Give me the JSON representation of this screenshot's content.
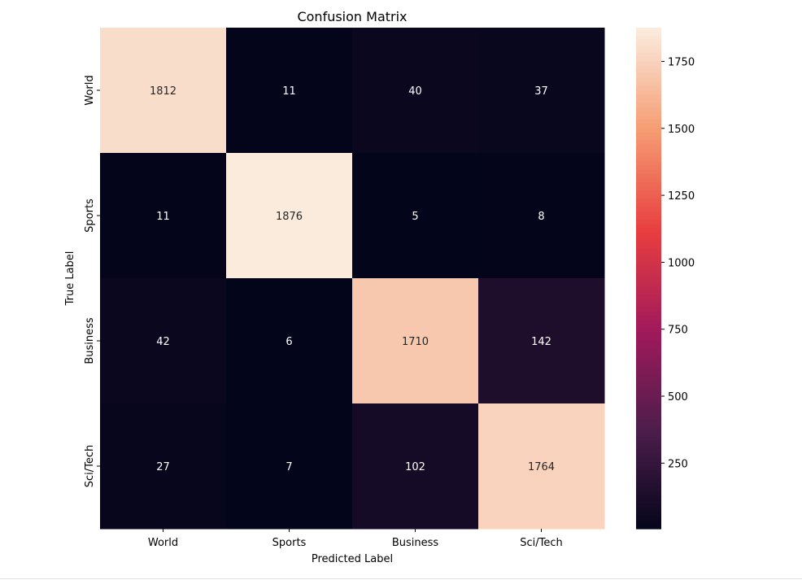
{
  "chart_data": {
    "type": "heatmap",
    "title": "Confusion Matrix",
    "xlabel": "Predicted Label",
    "ylabel": "True Label",
    "x_categories": [
      "World",
      "Sports",
      "Business",
      "Sci/Tech"
    ],
    "y_categories": [
      "World",
      "Sports",
      "Business",
      "Sci/Tech"
    ],
    "values": [
      [
        1812,
        11,
        40,
        37
      ],
      [
        11,
        1876,
        5,
        8
      ],
      [
        42,
        6,
        1710,
        142
      ],
      [
        27,
        7,
        102,
        1764
      ]
    ],
    "colorbar": {
      "min": 5,
      "max": 1876,
      "ticks": [
        250,
        500,
        750,
        1000,
        1250,
        1500,
        1750
      ],
      "colormap": "rocket"
    },
    "colormap_stops": [
      "#03051a",
      "#4c1d4b",
      "#a11a5b",
      "#e83f3f",
      "#f69c73",
      "#faebdd"
    ]
  }
}
